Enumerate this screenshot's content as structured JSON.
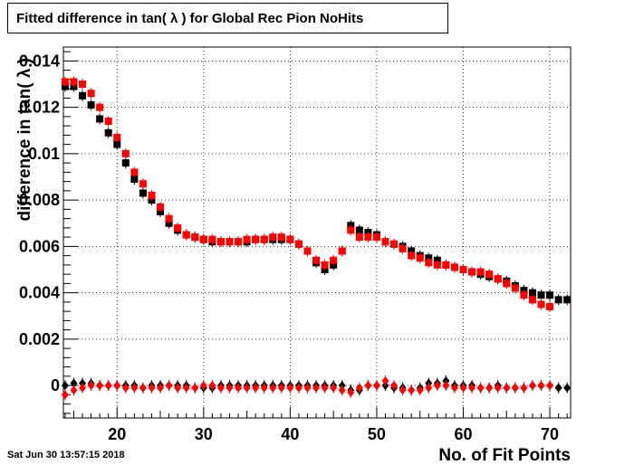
{
  "title": "Fitted difference in tan( λ ) for Global Rec Pion NoHits",
  "timestamp": "Sat Jun 30 13:57:15 2018",
  "chart_data": {
    "type": "scatter",
    "title": "Fitted difference in tan( λ ) for Global Rec Pion NoHits",
    "xlabel": "No. of Fit Points",
    "ylabel": "difference in tan( λ )",
    "xlim": [
      13.8,
      72.4
    ],
    "ylim": [
      -0.0014,
      0.0146
    ],
    "x_ticks": [
      20,
      30,
      40,
      50,
      60,
      70
    ],
    "y_ticks": [
      0,
      0.002,
      0.004,
      0.006,
      0.008,
      0.01,
      0.012,
      0.014
    ],
    "x_tick_labels": [
      "20",
      "30",
      "40",
      "50",
      "60",
      "70"
    ],
    "y_tick_labels": [
      "0",
      "0.002",
      "0.004",
      "0.006",
      "0.008",
      "0.01",
      "0.012",
      "0.014"
    ],
    "grid": true,
    "x": [
      14,
      15,
      16,
      17,
      18,
      19,
      20,
      21,
      22,
      23,
      24,
      25,
      26,
      27,
      28,
      29,
      30,
      31,
      32,
      33,
      34,
      35,
      36,
      37,
      38,
      39,
      40,
      41,
      42,
      43,
      44,
      45,
      46,
      47,
      48,
      49,
      50,
      51,
      52,
      53,
      54,
      55,
      56,
      57,
      58,
      59,
      60,
      61,
      62,
      63,
      64,
      65,
      66,
      67,
      68,
      69,
      70,
      71,
      72
    ],
    "series": [
      {
        "color": "#000000",
        "marker": "square",
        "values": [
          0.0129,
          0.0129,
          0.0125,
          0.0121,
          0.0115,
          0.0109,
          0.0104,
          0.0096,
          0.0089,
          0.0083,
          0.008,
          0.0075,
          0.007,
          0.0067,
          0.0065,
          0.0064,
          0.0063,
          0.0062,
          0.0062,
          0.0062,
          0.0062,
          0.0062,
          0.0063,
          0.0063,
          0.0063,
          0.0063,
          0.0063,
          0.0061,
          0.0058,
          0.0053,
          0.005,
          0.0052,
          0.0058,
          0.0069,
          0.0067,
          0.0066,
          0.0065,
          0.0062,
          0.0061,
          0.006,
          0.0058,
          0.0056,
          0.0055,
          0.0054,
          0.0052,
          0.0051,
          0.005,
          0.0049,
          0.0048,
          0.0047,
          0.0046,
          0.0045,
          0.0043,
          0.0041,
          0.004,
          0.0039,
          0.0039,
          0.0037,
          0.0037
        ]
      },
      {
        "color": "#ff0000",
        "marker": "square",
        "values": [
          0.0131,
          0.0131,
          0.013,
          0.0126,
          0.012,
          0.0114,
          0.0107,
          0.01,
          0.0092,
          0.0087,
          0.0082,
          0.0077,
          0.0072,
          0.0068,
          0.0065,
          0.0064,
          0.0063,
          0.0063,
          0.0062,
          0.0062,
          0.0062,
          0.0063,
          0.0063,
          0.0063,
          0.0064,
          0.0064,
          0.0063,
          0.0061,
          0.0058,
          0.0054,
          0.0052,
          0.0054,
          0.0058,
          0.0067,
          0.0064,
          0.0064,
          0.0064,
          0.0062,
          0.0061,
          0.0059,
          0.0056,
          0.0055,
          0.0053,
          0.0052,
          0.0052,
          0.0051,
          0.005,
          0.0049,
          0.0049,
          0.0048,
          0.0046,
          0.0044,
          0.0042,
          0.0039,
          0.0037,
          0.0035,
          0.0034,
          null,
          null
        ]
      },
      {
        "color": "#000000",
        "marker": "diamond",
        "values": [
          0.0,
          0.0001,
          0.0001,
          0.0001,
          0.0,
          0.0,
          0.0,
          0.0,
          0.0,
          -0.0001,
          0.0,
          0.0,
          0.0,
          0.0,
          0.0,
          -0.0001,
          -0.0001,
          -0.0001,
          0.0,
          0.0,
          0.0,
          0.0,
          0.0,
          0.0,
          0.0,
          0.0,
          0.0,
          0.0,
          0.0,
          0.0,
          0.0,
          0.0,
          0.0,
          -0.0002,
          -0.0002,
          0.0,
          0.0,
          0.0,
          -0.0001,
          -0.0001,
          -0.0002,
          -0.0001,
          0.0001,
          0.0001,
          0.0002,
          0.0,
          0.0,
          0.0,
          -0.0001,
          -0.0001,
          0.0,
          -0.0001,
          -0.0001,
          -0.0001,
          0.0,
          0.0,
          0.0,
          -0.0001,
          -0.0001
        ]
      },
      {
        "color": "#ff0000",
        "marker": "diamond",
        "values": [
          -0.0004,
          -0.0002,
          -0.0001,
          0.0,
          0.0,
          0.0,
          0.0,
          -0.0001,
          -0.0001,
          -0.0001,
          -0.0001,
          -0.0001,
          0.0,
          -0.0001,
          -0.0001,
          -0.0001,
          0.0,
          0.0,
          -0.0001,
          -0.0001,
          -0.0001,
          -0.0001,
          -0.0001,
          -0.0001,
          -0.0001,
          -0.0001,
          -0.0001,
          -0.0001,
          -0.0001,
          -0.0001,
          -0.0001,
          -0.0001,
          -0.0002,
          -0.0003,
          -0.0001,
          0.0,
          0.0,
          0.0002,
          0.0,
          -0.0002,
          -0.0002,
          -0.0002,
          -0.0001,
          0.0,
          0.0,
          -0.0001,
          -0.0001,
          -0.0001,
          -0.0001,
          -0.0001,
          -0.0001,
          -0.0001,
          -0.0001,
          -0.0001,
          0.0,
          0.0,
          0.0,
          null,
          null
        ]
      }
    ]
  }
}
